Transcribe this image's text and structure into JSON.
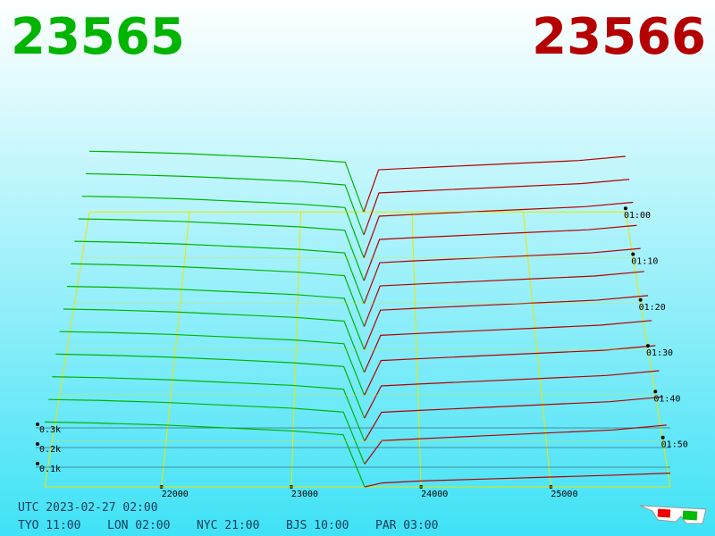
{
  "chart_data": {
    "type": "depth3d",
    "bid_label": "23565",
    "ask_label": "23566",
    "bid_color": "#00b400",
    "ask_color": "#b40000",
    "grid_color": "#e8e800",
    "utc": "UTC 2023-02-27 02:00",
    "clocks": [
      "TYO 11:00",
      "LON 02:00",
      "NYC 21:00",
      "BJS 10:00",
      "PAR 03:00"
    ],
    "xlim": [
      21100,
      25920
    ],
    "xticks": [
      22000,
      23000,
      24000,
      25000
    ],
    "ylim": [
      0,
      400
    ],
    "yticks": [
      {
        "value": 100,
        "label": "0.1k"
      },
      {
        "value": 200,
        "label": "0.2k"
      },
      {
        "value": 300,
        "label": "0.3k"
      }
    ],
    "zlim": [
      60,
      120
    ],
    "zticks": [
      {
        "value": 60,
        "label": "01:00"
      },
      {
        "value": 70,
        "label": "01:10"
      },
      {
        "value": 80,
        "label": "01:20"
      },
      {
        "value": 90,
        "label": "01:30"
      },
      {
        "value": 100,
        "label": "01:40"
      },
      {
        "value": 110,
        "label": "01:50"
      }
    ],
    "bid_prices": [
      21100,
      21500,
      22000,
      22500,
      23000,
      23400,
      23565
    ],
    "ask_prices": [
      23566,
      23700,
      24000,
      24500,
      25000,
      25500,
      25920
    ],
    "bid_slices": [
      {
        "z": 60,
        "values": [
          360,
          355,
          345,
          330,
          315,
          295,
          0
        ]
      },
      {
        "z": 65,
        "values": [
          358,
          352,
          342,
          328,
          312,
          292,
          0
        ]
      },
      {
        "z": 70,
        "values": [
          355,
          350,
          340,
          325,
          310,
          290,
          0
        ]
      },
      {
        "z": 75,
        "values": [
          352,
          347,
          337,
          322,
          307,
          287,
          0
        ]
      },
      {
        "z": 80,
        "values": [
          350,
          345,
          335,
          320,
          305,
          285,
          0
        ]
      },
      {
        "z": 85,
        "values": [
          348,
          342,
          332,
          318,
          302,
          282,
          0
        ]
      },
      {
        "z": 90,
        "values": [
          345,
          340,
          330,
          315,
          300,
          280,
          0
        ]
      },
      {
        "z": 95,
        "values": [
          342,
          337,
          327,
          312,
          297,
          277,
          0
        ]
      },
      {
        "z": 100,
        "values": [
          340,
          335,
          325,
          310,
          295,
          275,
          0
        ]
      },
      {
        "z": 105,
        "values": [
          338,
          332,
          322,
          308,
          292,
          272,
          0
        ]
      },
      {
        "z": 110,
        "values": [
          335,
          330,
          320,
          305,
          290,
          270,
          0
        ]
      },
      {
        "z": 115,
        "values": [
          332,
          327,
          317,
          302,
          287,
          267,
          0
        ]
      },
      {
        "z": 120,
        "values": [
          330,
          325,
          315,
          300,
          285,
          265,
          0
        ]
      }
    ],
    "ask_slices": [
      {
        "z": 60,
        "values": [
          0,
          250,
          260,
          275,
          290,
          305,
          330
        ]
      },
      {
        "z": 65,
        "values": [
          0,
          245,
          255,
          270,
          285,
          300,
          325
        ]
      },
      {
        "z": 70,
        "values": [
          0,
          240,
          250,
          265,
          280,
          295,
          320
        ]
      },
      {
        "z": 75,
        "values": [
          0,
          235,
          245,
          260,
          275,
          290,
          315
        ]
      },
      {
        "z": 80,
        "values": [
          0,
          230,
          240,
          255,
          270,
          285,
          310
        ]
      },
      {
        "z": 85,
        "values": [
          0,
          225,
          235,
          250,
          265,
          280,
          305
        ]
      },
      {
        "z": 90,
        "values": [
          0,
          215,
          225,
          240,
          255,
          270,
          295
        ]
      },
      {
        "z": 95,
        "values": [
          0,
          200,
          210,
          225,
          240,
          255,
          280
        ]
      },
      {
        "z": 100,
        "values": [
          0,
          185,
          195,
          210,
          225,
          240,
          265
        ]
      },
      {
        "z": 105,
        "values": [
          0,
          170,
          180,
          195,
          210,
          225,
          250
        ]
      },
      {
        "z": 110,
        "values": [
          0,
          150,
          160,
          175,
          190,
          205,
          230
        ]
      },
      {
        "z": 115,
        "values": [
          0,
          120,
          130,
          145,
          160,
          175,
          200
        ]
      },
      {
        "z": 120,
        "values": [
          0,
          20,
          30,
          40,
          50,
          60,
          70
        ]
      }
    ]
  }
}
